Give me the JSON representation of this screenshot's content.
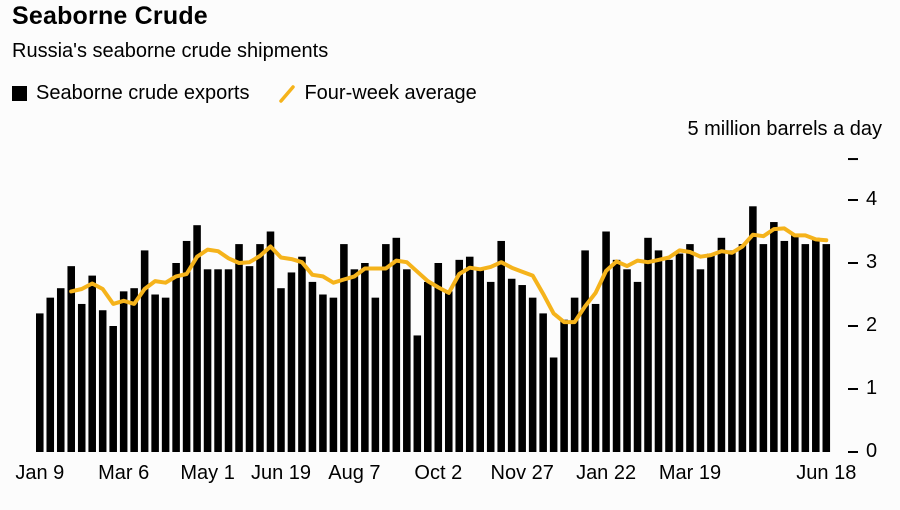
{
  "header": {
    "title": "Seaborne Crude",
    "subtitle": "Russia's seaborne crude shipments"
  },
  "legend": [
    {
      "label": "Seaborne crude exports",
      "type": "bar",
      "color": "#000000"
    },
    {
      "label": "Four-week average",
      "type": "line",
      "color": "#f5b31b"
    }
  ],
  "chart_data": {
    "type": "bar",
    "title": "Seaborne Crude",
    "subtitle": "Russia's seaborne crude shipments",
    "unit_label": "5 million barrels a day",
    "xlabel": "",
    "ylabel": "million barrels a day",
    "ylim": [
      0,
      4.65
    ],
    "y_ticks": [
      0,
      1,
      2,
      3,
      4
    ],
    "grid": false,
    "legend_position": "top-left",
    "series": [
      {
        "name": "Seaborne crude exports",
        "type": "bar",
        "color": "#000000",
        "values": [
          2.2,
          2.45,
          2.6,
          2.95,
          2.35,
          2.8,
          2.25,
          2.0,
          2.55,
          2.6,
          3.2,
          2.5,
          2.45,
          3.0,
          3.35,
          3.6,
          2.9,
          2.9,
          2.9,
          3.3,
          2.95,
          3.3,
          3.5,
          2.6,
          2.85,
          3.1,
          2.7,
          2.5,
          2.45,
          3.3,
          2.9,
          3.0,
          2.45,
          3.3,
          3.4,
          2.9,
          1.85,
          2.7,
          3.0,
          2.55,
          3.05,
          3.1,
          2.9,
          2.7,
          3.35,
          2.75,
          2.65,
          2.45,
          2.2,
          1.5,
          2.1,
          2.45,
          3.2,
          2.35,
          3.5,
          3.05,
          2.9,
          2.7,
          3.4,
          3.2,
          3.05,
          3.15,
          3.3,
          2.9,
          3.15,
          3.4,
          3.2,
          3.3,
          3.9,
          3.3,
          3.65,
          3.35,
          3.45,
          3.3,
          3.4,
          3.3
        ]
      },
      {
        "name": "Four-week average",
        "type": "line",
        "color": "#f5b31b",
        "window": 4,
        "derived_from": "Seaborne crude exports"
      }
    ],
    "x_tick_labels": [
      {
        "label": "Jan 9",
        "index": 0
      },
      {
        "label": "Mar 6",
        "index": 8
      },
      {
        "label": "May 1",
        "index": 16
      },
      {
        "label": "Jun 19",
        "index": 23
      },
      {
        "label": "Aug 7",
        "index": 30
      },
      {
        "label": "Oct 2",
        "index": 38
      },
      {
        "label": "Nov 27",
        "index": 46
      },
      {
        "label": "Jan 22",
        "index": 54
      },
      {
        "label": "Mar 19",
        "index": 62
      },
      {
        "label": "Jun 18",
        "index": 75
      }
    ]
  }
}
